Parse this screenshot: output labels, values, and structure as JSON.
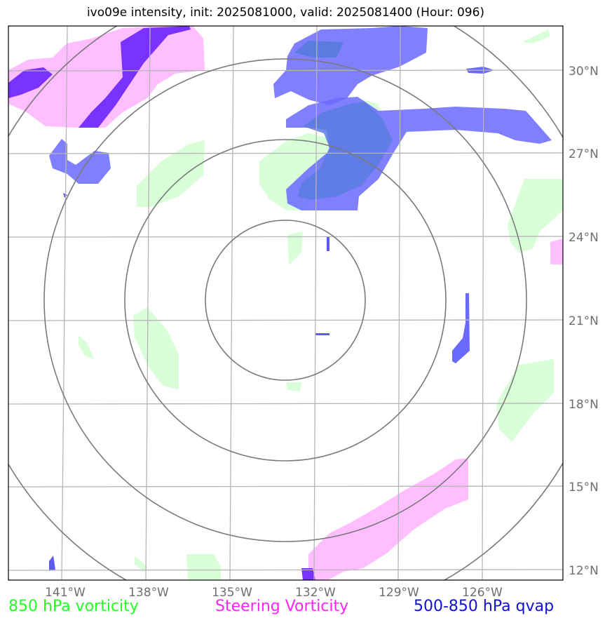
{
  "title": "ivo09e intensity, init: 2025081000, valid: 2025081400 (Hour: 096)",
  "map": {
    "lat_labels": [
      "30°N",
      "27°N",
      "24°N",
      "21°N",
      "18°N",
      "15°N",
      "12°N"
    ],
    "lon_labels": [
      "141°W",
      "138°W",
      "135°W",
      "132°W",
      "129°W",
      "126°W"
    ],
    "range_rings": 4,
    "colors": {
      "vorticity_850": "#ccffcc",
      "steering_vorticity": "#ffaaff",
      "steering_vorticity_strong": "#7a33ff",
      "qvap": "#6a6aff",
      "qvap_strong": "#5b7be0",
      "ring": "#7a7a7a",
      "grid": "#b5b5b5"
    }
  },
  "legend": {
    "green": "850 hPa vorticity",
    "magenta": "Steering Vorticity",
    "blue": "500-850 hPa qvap"
  }
}
